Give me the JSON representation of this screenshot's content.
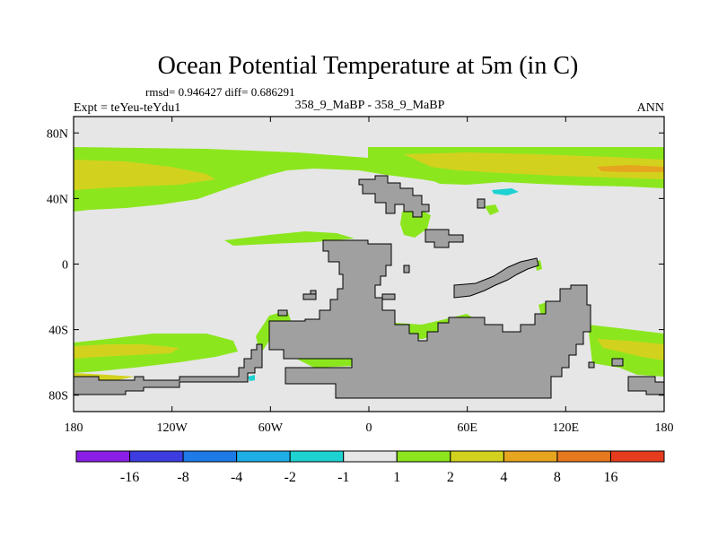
{
  "chart_data": {
    "type": "map-contour",
    "title": "Ocean Potential Temperature at 5m (in C)",
    "stats_line": "rmsd= 0.946427 diff= 0.686291",
    "left_label": "Expt = teYeu-teYdu1",
    "center_label": "358_9_MaBP - 358_9_MaBP",
    "right_label": "ANN",
    "x_axis": {
      "range": [
        -180,
        180
      ],
      "ticks": [
        {
          "value": -180,
          "label": "180"
        },
        {
          "value": -120,
          "label": "120W"
        },
        {
          "value": -60,
          "label": "60W"
        },
        {
          "value": 0,
          "label": "0"
        },
        {
          "value": 60,
          "label": "60E"
        },
        {
          "value": 120,
          "label": "120E"
        },
        {
          "value": 180,
          "label": "180"
        }
      ]
    },
    "y_axis": {
      "range": [
        -90,
        90
      ],
      "ticks": [
        {
          "value": 80,
          "label": "80N"
        },
        {
          "value": 40,
          "label": "40N"
        },
        {
          "value": 0,
          "label": "0"
        },
        {
          "value": -40,
          "label": "40S"
        },
        {
          "value": -80,
          "label": "80S"
        }
      ]
    },
    "colorbar": {
      "colors": [
        "#8a1ee6",
        "#3c3ce0",
        "#1e7ae6",
        "#1eaee6",
        "#1ed2d2",
        "#e6e6e6",
        "#8ce61e",
        "#d2d21e",
        "#e6a51e",
        "#e6781e",
        "#e63c1e"
      ],
      "labels": [
        "-16",
        "-8",
        "-4",
        "-2",
        "-1",
        "1",
        "2",
        "4",
        "8",
        "16"
      ]
    },
    "fills": {
      "ocean_background": "#e6e6e6",
      "land": "#a0a0a0",
      "level_1_to_2": "#8ce61e",
      "level_2_to_4": "#d2d21e",
      "level_4_to_8": "#e6a51e",
      "level_minus2_to_minus1": "#1ed2d2"
    }
  }
}
